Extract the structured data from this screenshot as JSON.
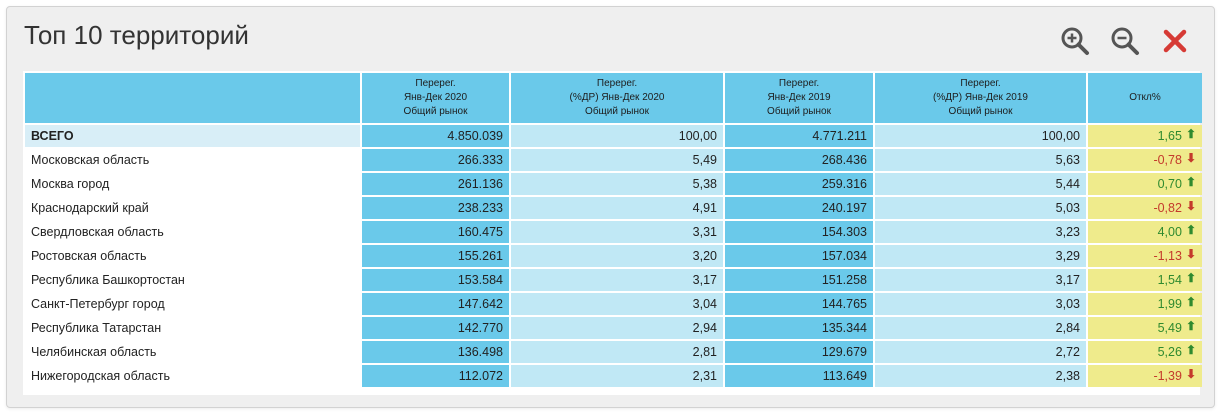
{
  "panel": {
    "title": "Топ 10 территорий",
    "tools": {
      "zoom_in": "zoom-in-icon",
      "zoom_out": "zoom-out-icon",
      "close": "close-icon"
    }
  },
  "colors": {
    "header_bg": "#6ac9ea",
    "dark_col": "#6ac9ea",
    "light_col": "#c0e8f5",
    "deviation_col": "#efeb8c",
    "positive": "#2f8a2f",
    "negative": "#c43a2c",
    "close_icon": "#d63a35"
  },
  "table": {
    "headers": [
      "",
      "Перерег.\nЯнв-Дек 2020\nОбщий рынок",
      "Перерег.\n(%ДР) Янв-Дек 2020\nОбщий рынок",
      "Перерег.\nЯнв-Дек 2019\nОбщий рынок",
      "Перерег.\n(%ДР) Янв-Дек 2019\nОбщий рынок",
      "Откл%"
    ],
    "rows": [
      {
        "name": "ВСЕГО",
        "v2020": "4.850.039",
        "p2020": "100,00",
        "v2019": "4.771.211",
        "p2019": "100,00",
        "dev": "1,65",
        "dir": "up"
      },
      {
        "name": "Московская область",
        "v2020": "266.333",
        "p2020": "5,49",
        "v2019": "268.436",
        "p2019": "5,63",
        "dev": "-0,78",
        "dir": "down"
      },
      {
        "name": "Москва город",
        "v2020": "261.136",
        "p2020": "5,38",
        "v2019": "259.316",
        "p2019": "5,44",
        "dev": "0,70",
        "dir": "up"
      },
      {
        "name": "Краснодарский край",
        "v2020": "238.233",
        "p2020": "4,91",
        "v2019": "240.197",
        "p2019": "5,03",
        "dev": "-0,82",
        "dir": "down"
      },
      {
        "name": "Свердловская область",
        "v2020": "160.475",
        "p2020": "3,31",
        "v2019": "154.303",
        "p2019": "3,23",
        "dev": "4,00",
        "dir": "up"
      },
      {
        "name": "Ростовская область",
        "v2020": "155.261",
        "p2020": "3,20",
        "v2019": "157.034",
        "p2019": "3,29",
        "dev": "-1,13",
        "dir": "down"
      },
      {
        "name": "Республика Башкортостан",
        "v2020": "153.584",
        "p2020": "3,17",
        "v2019": "151.258",
        "p2019": "3,17",
        "dev": "1,54",
        "dir": "up"
      },
      {
        "name": "Санкт-Петербург город",
        "v2020": "147.642",
        "p2020": "3,04",
        "v2019": "144.765",
        "p2019": "3,03",
        "dev": "1,99",
        "dir": "up"
      },
      {
        "name": "Республика Татарстан",
        "v2020": "142.770",
        "p2020": "2,94",
        "v2019": "135.344",
        "p2019": "2,84",
        "dev": "5,49",
        "dir": "up"
      },
      {
        "name": "Челябинская область",
        "v2020": "136.498",
        "p2020": "2,81",
        "v2019": "129.679",
        "p2019": "2,72",
        "dev": "5,26",
        "dir": "up"
      },
      {
        "name": "Нижегородская область",
        "v2020": "112.072",
        "p2020": "2,31",
        "v2019": "113.649",
        "p2019": "2,38",
        "dev": "-1,39",
        "dir": "down"
      }
    ]
  }
}
